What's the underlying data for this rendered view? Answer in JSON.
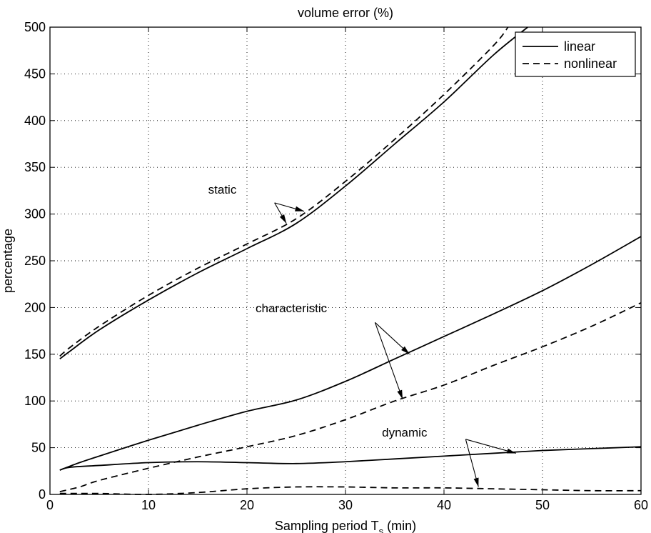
{
  "chart_data": {
    "type": "line",
    "title": "volume error (%)",
    "xlabel_main": "Sampling period T",
    "xlabel_sub": "s",
    "xlabel_tail": " (min)",
    "ylabel": "percentage",
    "xlim": [
      0,
      60
    ],
    "ylim": [
      0,
      500
    ],
    "xticks": [
      0,
      10,
      20,
      30,
      40,
      50,
      60
    ],
    "yticks": [
      0,
      50,
      100,
      150,
      200,
      250,
      300,
      350,
      400,
      450,
      500
    ],
    "grid": true,
    "legend_position": "top-right",
    "legend": [
      {
        "label": "linear",
        "style": "solid"
      },
      {
        "label": "nonlinear",
        "style": "dashed"
      }
    ],
    "series": [
      {
        "group": "static",
        "style": "solid",
        "x": [
          1,
          2,
          5,
          10,
          15,
          20,
          25,
          30,
          35,
          40,
          45,
          48.5
        ],
        "y": [
          145,
          153,
          176,
          208,
          237,
          263,
          290,
          330,
          375,
          420,
          470,
          500
        ]
      },
      {
        "group": "static",
        "style": "dashed",
        "x": [
          1,
          2,
          5,
          10,
          15,
          20,
          25,
          30,
          35,
          40,
          45,
          46.5
        ],
        "y": [
          148,
          157,
          180,
          213,
          242,
          268,
          295,
          335,
          380,
          428,
          480,
          500
        ]
      },
      {
        "group": "characteristic",
        "style": "solid",
        "x": [
          1,
          3,
          5,
          10,
          15,
          20,
          25,
          30,
          35,
          40,
          45,
          50,
          55,
          60
        ],
        "y": [
          26,
          34,
          41,
          58,
          74,
          89,
          101,
          121,
          145,
          169,
          193,
          218,
          246,
          276
        ]
      },
      {
        "group": "characteristic",
        "style": "dashed",
        "x": [
          1,
          3,
          5,
          10,
          15,
          20,
          25,
          30,
          35,
          40,
          45,
          50,
          55,
          60
        ],
        "y": [
          3,
          8,
          15,
          28,
          40,
          51,
          63,
          80,
          100,
          117,
          138,
          158,
          180,
          205
        ]
      },
      {
        "group": "dynamic",
        "style": "solid",
        "x": [
          1,
          2,
          5,
          10,
          15,
          20,
          25,
          30,
          35,
          40,
          45,
          50,
          55,
          60
        ],
        "y": [
          26,
          29,
          31,
          34,
          35,
          34,
          33,
          35,
          38,
          41,
          44,
          47,
          49,
          51
        ]
      },
      {
        "group": "dynamic",
        "style": "dashed",
        "x": [
          1,
          5,
          10,
          15,
          20,
          25,
          30,
          35,
          40,
          45,
          50,
          55,
          60
        ],
        "y": [
          1,
          1,
          0,
          2,
          6,
          8,
          8,
          7,
          7,
          6,
          5,
          4,
          4
        ]
      }
    ],
    "annotations": [
      {
        "text": "static",
        "label_x": 17.5,
        "label_y": 322,
        "arrows": [
          {
            "from": [
              22.8,
              312
            ],
            "to": [
              24,
              290
            ]
          },
          {
            "from": [
              22.8,
              312
            ],
            "to": [
              25.8,
              303
            ]
          }
        ]
      },
      {
        "text": "characteristic",
        "label_x": 24.5,
        "label_y": 195,
        "arrows": [
          {
            "from": [
              33,
              184
            ],
            "to": [
              36.5,
              150
            ]
          },
          {
            "from": [
              33,
              184
            ],
            "to": [
              35.8,
              102
            ]
          }
        ]
      },
      {
        "text": "dynamic",
        "label_x": 36,
        "label_y": 62,
        "arrows": [
          {
            "from": [
              42.2,
              59
            ],
            "to": [
              47.3,
              44
            ]
          },
          {
            "from": [
              42.2,
              59
            ],
            "to": [
              43.5,
              8
            ]
          }
        ]
      }
    ]
  }
}
